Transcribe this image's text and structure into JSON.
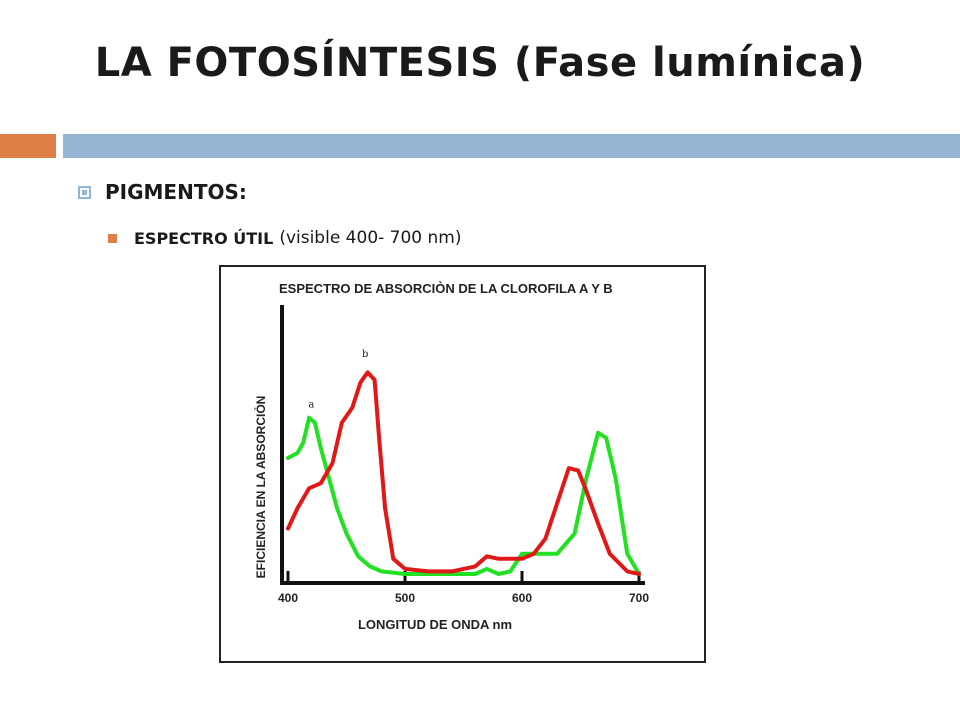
{
  "slide": {
    "title": "LA FOTOSÍNTESIS (Fase lumínica)",
    "bullet1": "PIGMENTOS:",
    "bullet2_strong": "ESPECTRO ÚTIL",
    "bullet2_rest": "(visible 400- 700 nm)"
  },
  "colors": {
    "accent_orange": "#dd8047",
    "accent_blue": "#94b6d2",
    "chlorophyll_a": "#22e022",
    "chlorophyll_b": "#e01818"
  },
  "chart_data": {
    "type": "line",
    "title": "ESPECTRO DE ABSORCIÒN DE LA CLOROFILA  A  Y  B",
    "xlabel": "LONGITUD DE ONDA  nm",
    "ylabel": "EFICIENCIA EN LA ABSORCIÒN",
    "xlim": [
      400,
      700
    ],
    "ylim": [
      0,
      100
    ],
    "x_ticks": [
      400,
      500,
      600,
      700
    ],
    "grid": false,
    "series": [
      {
        "name": "a",
        "color": "#22e022",
        "points": [
          [
            400,
            48
          ],
          [
            408,
            50
          ],
          [
            413,
            54
          ],
          [
            418,
            64
          ],
          [
            423,
            62
          ],
          [
            428,
            52
          ],
          [
            435,
            40
          ],
          [
            442,
            28
          ],
          [
            450,
            18
          ],
          [
            460,
            9
          ],
          [
            470,
            5
          ],
          [
            480,
            3
          ],
          [
            500,
            2
          ],
          [
            540,
            2
          ],
          [
            560,
            2
          ],
          [
            570,
            4
          ],
          [
            580,
            2
          ],
          [
            590,
            3
          ],
          [
            600,
            10
          ],
          [
            615,
            10
          ],
          [
            630,
            10
          ],
          [
            645,
            18
          ],
          [
            655,
            40
          ],
          [
            665,
            58
          ],
          [
            672,
            56
          ],
          [
            680,
            40
          ],
          [
            690,
            10
          ],
          [
            700,
            2
          ]
        ]
      },
      {
        "name": "b",
        "color": "#e01818",
        "points": [
          [
            400,
            20
          ],
          [
            408,
            28
          ],
          [
            418,
            36
          ],
          [
            428,
            38
          ],
          [
            438,
            46
          ],
          [
            446,
            62
          ],
          [
            455,
            68
          ],
          [
            462,
            78
          ],
          [
            468,
            82
          ],
          [
            474,
            79
          ],
          [
            478,
            55
          ],
          [
            483,
            28
          ],
          [
            490,
            8
          ],
          [
            500,
            4
          ],
          [
            520,
            3
          ],
          [
            540,
            3
          ],
          [
            560,
            5
          ],
          [
            570,
            9
          ],
          [
            580,
            8
          ],
          [
            600,
            8
          ],
          [
            610,
            10
          ],
          [
            620,
            16
          ],
          [
            630,
            30
          ],
          [
            640,
            44
          ],
          [
            648,
            43
          ],
          [
            655,
            35
          ],
          [
            665,
            22
          ],
          [
            675,
            10
          ],
          [
            690,
            3
          ],
          [
            700,
            2
          ]
        ]
      }
    ],
    "annotations": [
      {
        "text": "a",
        "x": 420,
        "y": 68
      },
      {
        "text": "b",
        "x": 466,
        "y": 88
      }
    ]
  }
}
